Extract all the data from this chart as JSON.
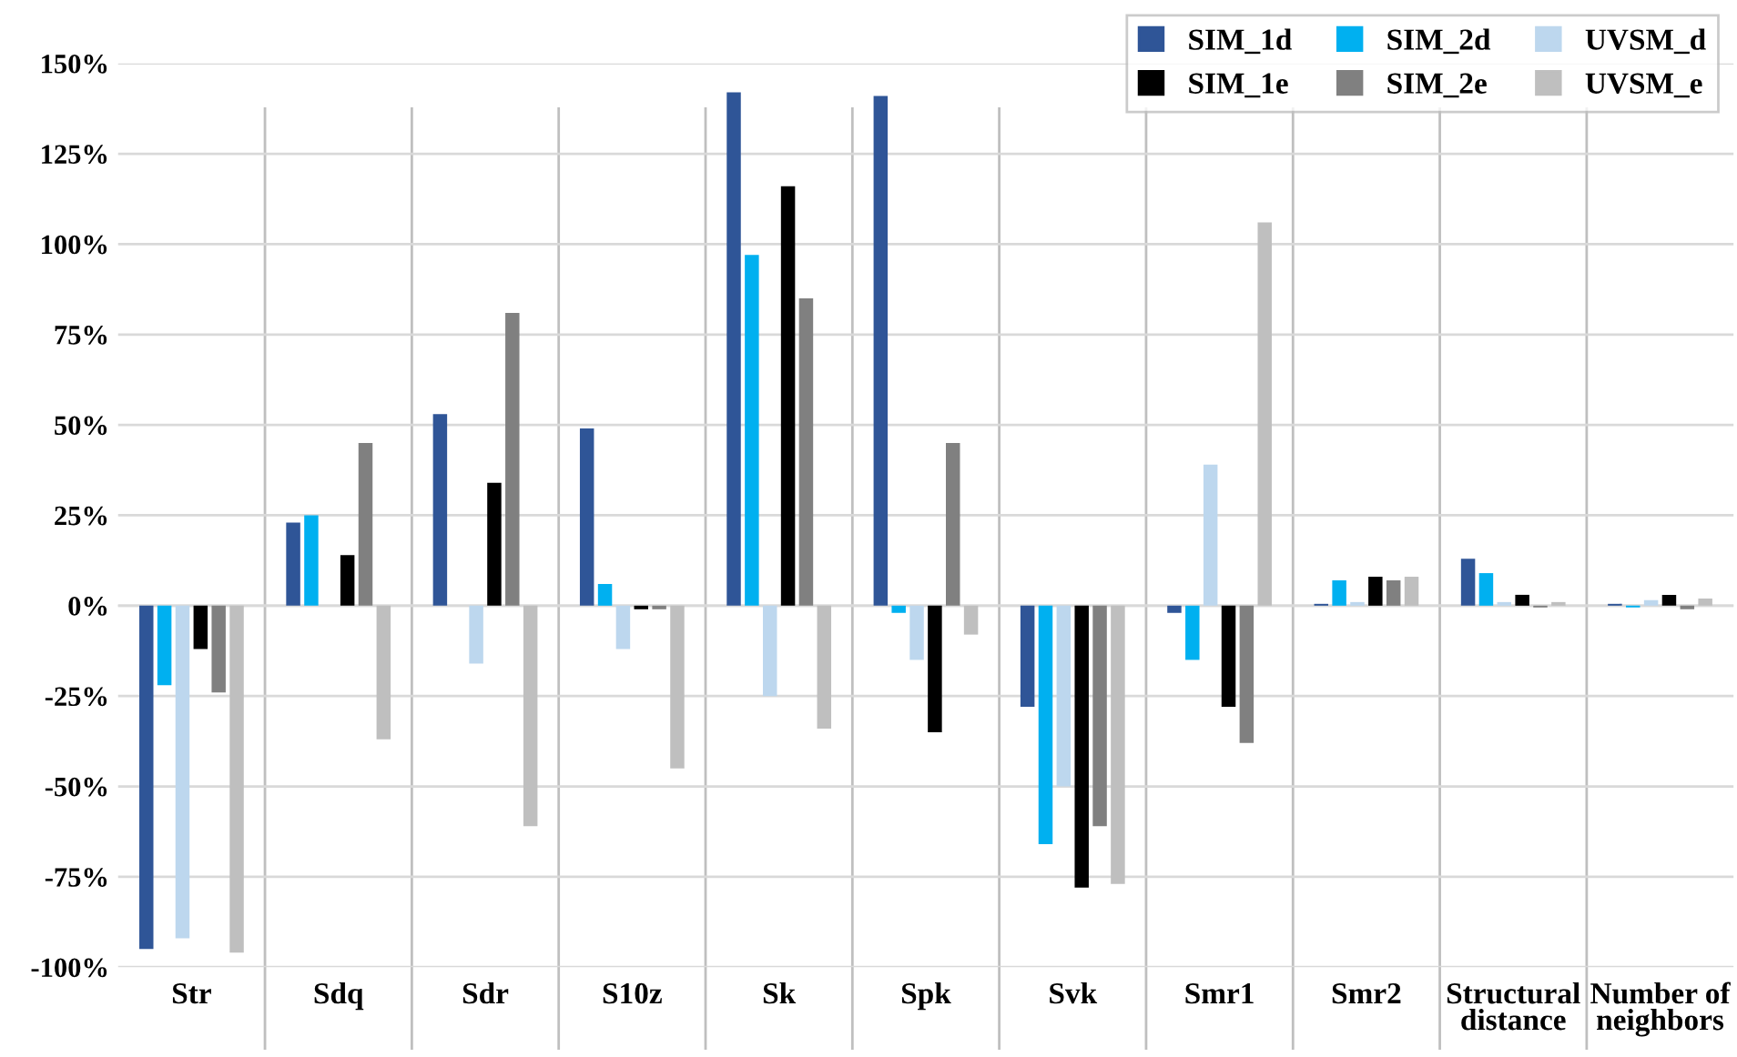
{
  "chart_data": {
    "type": "bar",
    "categories": [
      "Str",
      "Sdq",
      "Sdr",
      "S10z",
      "Sk",
      "Spk",
      "Svk",
      "Smr1",
      "Smr2",
      "Structural\ndistance",
      "Number of\nneighbors"
    ],
    "series": [
      {
        "name": "SIM_1d",
        "color": "#2f5597",
        "values": [
          -95,
          23,
          53,
          49,
          142,
          141,
          -28,
          -2,
          0.5,
          13,
          0.5
        ]
      },
      {
        "name": "SIM_2d",
        "color": "#00b0f0",
        "values": [
          -22,
          25,
          0,
          6,
          97,
          -2,
          -66,
          -15,
          7,
          9,
          -0.5
        ]
      },
      {
        "name": "UVSM_d",
        "color": "#bdd7ee",
        "values": [
          -92,
          0,
          -16,
          -12,
          -25,
          -15,
          -50,
          39,
          1,
          1,
          1.5
        ]
      },
      {
        "name": "SIM_1e",
        "color": "#000000",
        "values": [
          -12,
          14,
          34,
          -1,
          116,
          -35,
          -78,
          -28,
          8,
          3,
          3
        ]
      },
      {
        "name": "SIM_2e",
        "color": "#808080",
        "values": [
          -24,
          45,
          81,
          -1,
          85,
          45,
          -61,
          -38,
          7,
          -0.5,
          -1
        ]
      },
      {
        "name": "UVSM_e",
        "color": "#bfbfbf",
        "values": [
          -96,
          -37,
          -61,
          -45,
          -34,
          -8,
          -77,
          106,
          8,
          1,
          2
        ]
      }
    ],
    "ylim": [
      -100,
      150
    ],
    "yticks": [
      {
        "value": -100,
        "label": "-100%"
      },
      {
        "value": -75,
        "label": "-75%"
      },
      {
        "value": -50,
        "label": "-50%"
      },
      {
        "value": -25,
        "label": "-25%"
      },
      {
        "value": 0,
        "label": "0%"
      },
      {
        "value": 25,
        "label": "25%"
      },
      {
        "value": 50,
        "label": "50%"
      },
      {
        "value": 75,
        "label": "75%"
      },
      {
        "value": 100,
        "label": "100%"
      },
      {
        "value": 125,
        "label": "125%"
      },
      {
        "value": 150,
        "label": "150%"
      }
    ],
    "grid": true,
    "legend": "top right"
  }
}
